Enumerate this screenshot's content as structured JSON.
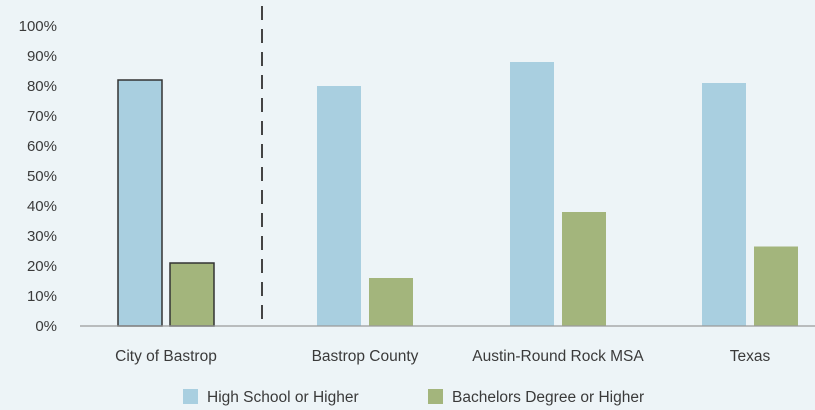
{
  "chart_data": {
    "type": "bar",
    "categories": [
      "City of Bastrop",
      "Bastrop County",
      "Austin-Round Rock MSA",
      "Texas"
    ],
    "series": [
      {
        "name": "High School or Higher",
        "color": "#a9cfe0",
        "values": [
          82,
          80,
          88,
          81
        ]
      },
      {
        "name": "Bachelors Degree or Higher",
        "color": "#a3b57c",
        "values": [
          21,
          16,
          38,
          26.5
        ]
      }
    ],
    "ylim": [
      0,
      100
    ],
    "y_ticks": [
      "0%",
      "10%",
      "20%",
      "30%",
      "40%",
      "50%",
      "60%",
      "70%",
      "80%",
      "90%",
      "100%"
    ],
    "highlighted_category": "City of Bastrop",
    "separator": "dashed line after first category",
    "grid": false,
    "legend_position": "bottom"
  }
}
